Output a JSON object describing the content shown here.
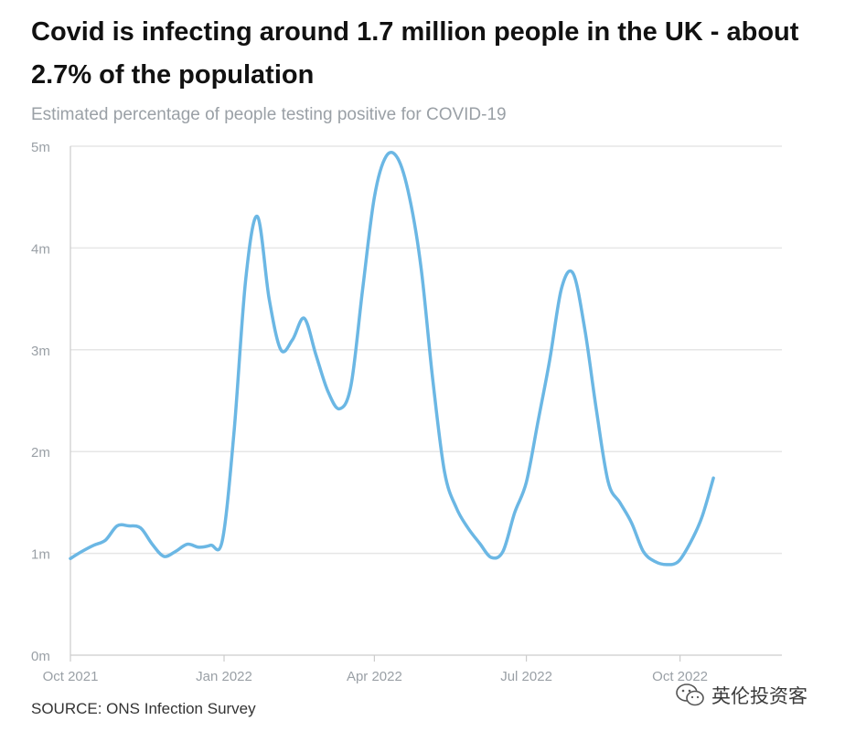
{
  "title": "Covid is infecting around 1.7 million people in the UK - about 2.7% of the population",
  "subtitle": "Estimated percentage of people testing positive for COVID-19",
  "source": "SOURCE: ONS Infection Survey",
  "watermark": {
    "text": "英伦投资客",
    "icon": "wechat-icon"
  },
  "colors": {
    "line": "#6bb7e4",
    "grid": "#e6e6e6",
    "tick": "#9aa0a6",
    "axis": "#cccccc"
  },
  "chart_data": {
    "type": "line",
    "title": "",
    "xlabel": "",
    "ylabel": "",
    "ylim": [
      0,
      5000000
    ],
    "yticks": [
      {
        "value": 0,
        "label": "0m"
      },
      {
        "value": 1000000,
        "label": "1m"
      },
      {
        "value": 2000000,
        "label": "2m"
      },
      {
        "value": 3000000,
        "label": "3m"
      },
      {
        "value": 4000000,
        "label": "4m"
      },
      {
        "value": 5000000,
        "label": "5m"
      }
    ],
    "xlim": [
      "2021-10-01",
      "2022-12-01"
    ],
    "xticks": [
      {
        "value": "2021-10-01",
        "label": "Oct 2021"
      },
      {
        "value": "2022-01-01",
        "label": "Jan 2022"
      },
      {
        "value": "2022-04-01",
        "label": "Apr 2022"
      },
      {
        "value": "2022-07-01",
        "label": "Jul 2022"
      },
      {
        "value": "2022-10-01",
        "label": "Oct 2022"
      }
    ],
    "grid": true,
    "series": [
      {
        "points": [
          [
            "2021-10-01",
            950000
          ],
          [
            "2021-10-08",
            1020000
          ],
          [
            "2021-10-15",
            1080000
          ],
          [
            "2021-10-22",
            1130000
          ],
          [
            "2021-10-29",
            1270000
          ],
          [
            "2021-11-05",
            1270000
          ],
          [
            "2021-11-12",
            1250000
          ],
          [
            "2021-11-19",
            1090000
          ],
          [
            "2021-11-26",
            970000
          ],
          [
            "2021-12-03",
            1020000
          ],
          [
            "2021-12-10",
            1090000
          ],
          [
            "2021-12-17",
            1060000
          ],
          [
            "2021-12-24",
            1080000
          ],
          [
            "2021-12-31",
            1130000
          ],
          [
            "2022-01-07",
            2200000
          ],
          [
            "2022-01-14",
            3700000
          ],
          [
            "2022-01-21",
            4310000
          ],
          [
            "2022-01-28",
            3500000
          ],
          [
            "2022-02-04",
            3000000
          ],
          [
            "2022-02-11",
            3100000
          ],
          [
            "2022-02-18",
            3310000
          ],
          [
            "2022-02-25",
            2950000
          ],
          [
            "2022-03-04",
            2600000
          ],
          [
            "2022-03-11",
            2420000
          ],
          [
            "2022-03-18",
            2650000
          ],
          [
            "2022-03-25",
            3600000
          ],
          [
            "2022-04-01",
            4500000
          ],
          [
            "2022-04-08",
            4900000
          ],
          [
            "2022-04-15",
            4880000
          ],
          [
            "2022-04-22",
            4500000
          ],
          [
            "2022-04-29",
            3800000
          ],
          [
            "2022-05-06",
            2700000
          ],
          [
            "2022-05-13",
            1800000
          ],
          [
            "2022-05-20",
            1450000
          ],
          [
            "2022-05-27",
            1250000
          ],
          [
            "2022-06-03",
            1100000
          ],
          [
            "2022-06-10",
            960000
          ],
          [
            "2022-06-17",
            1020000
          ],
          [
            "2022-06-24",
            1400000
          ],
          [
            "2022-07-01",
            1700000
          ],
          [
            "2022-07-08",
            2300000
          ],
          [
            "2022-07-15",
            2900000
          ],
          [
            "2022-07-22",
            3600000
          ],
          [
            "2022-07-29",
            3750000
          ],
          [
            "2022-08-05",
            3200000
          ],
          [
            "2022-08-12",
            2400000
          ],
          [
            "2022-08-19",
            1700000
          ],
          [
            "2022-08-26",
            1500000
          ],
          [
            "2022-09-02",
            1300000
          ],
          [
            "2022-09-09",
            1020000
          ],
          [
            "2022-09-16",
            920000
          ],
          [
            "2022-09-23",
            890000
          ],
          [
            "2022-09-30",
            920000
          ],
          [
            "2022-10-07",
            1100000
          ],
          [
            "2022-10-14",
            1350000
          ],
          [
            "2022-10-21",
            1740000
          ]
        ]
      }
    ]
  }
}
